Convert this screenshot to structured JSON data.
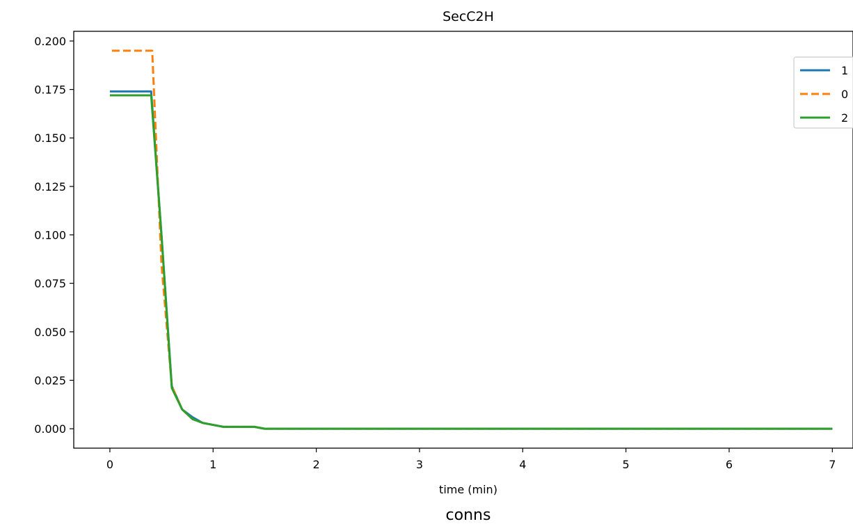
{
  "chart_data": {
    "type": "line",
    "title": "SecC2H",
    "xlabel": "time (min)",
    "ylabel": "",
    "caption": "conns",
    "xlim": [
      -0.35,
      7.2
    ],
    "ylim": [
      -0.01,
      0.205
    ],
    "x_ticks": [
      0,
      1,
      2,
      3,
      4,
      5,
      6,
      7
    ],
    "y_ticks": [
      0.0,
      0.025,
      0.05,
      0.075,
      0.1,
      0.125,
      0.15,
      0.175,
      0.2
    ],
    "y_tick_labels": [
      "0.000",
      "0.025",
      "0.050",
      "0.075",
      "0.100",
      "0.125",
      "0.150",
      "0.175",
      "0.200"
    ],
    "grid": false,
    "legend_position": "top-right",
    "series": [
      {
        "name": "1",
        "color": "#1f77b4",
        "dash": "solid",
        "x": [
          0,
          0.1,
          0.2,
          0.3,
          0.4,
          0.5,
          0.6,
          0.7,
          0.8,
          0.9,
          1.0,
          1.1,
          1.2,
          1.3,
          1.4,
          1.5,
          1.6,
          7.0
        ],
        "y": [
          0.174,
          0.174,
          0.174,
          0.174,
          0.174,
          0.1,
          0.022,
          0.01,
          0.006,
          0.003,
          0.002,
          0.001,
          0.001,
          0.001,
          0.001,
          0.0,
          0.0,
          0.0
        ]
      },
      {
        "name": "0",
        "color": "#ff7f0e",
        "dash": "dashed",
        "x": [
          0.02,
          0.1,
          0.2,
          0.3,
          0.41,
          0.5,
          0.6,
          0.7,
          0.8,
          0.9,
          1.0,
          1.1,
          1.2,
          1.3,
          1.4,
          1.5,
          1.6,
          7.0
        ],
        "y": [
          0.195,
          0.195,
          0.195,
          0.195,
          0.195,
          0.085,
          0.022,
          0.01,
          0.005,
          0.003,
          0.002,
          0.001,
          0.001,
          0.001,
          0.001,
          0.0,
          0.0,
          0.0
        ]
      },
      {
        "name": "2",
        "color": "#2ca02c",
        "dash": "solid",
        "x": [
          0,
          0.1,
          0.2,
          0.3,
          0.4,
          0.5,
          0.6,
          0.7,
          0.8,
          0.9,
          1.0,
          1.1,
          1.2,
          1.3,
          1.4,
          1.5,
          1.6,
          7.0
        ],
        "y": [
          0.172,
          0.172,
          0.172,
          0.172,
          0.172,
          0.1,
          0.021,
          0.01,
          0.005,
          0.003,
          0.002,
          0.001,
          0.001,
          0.001,
          0.001,
          0.0,
          0.0,
          0.0
        ]
      }
    ]
  }
}
